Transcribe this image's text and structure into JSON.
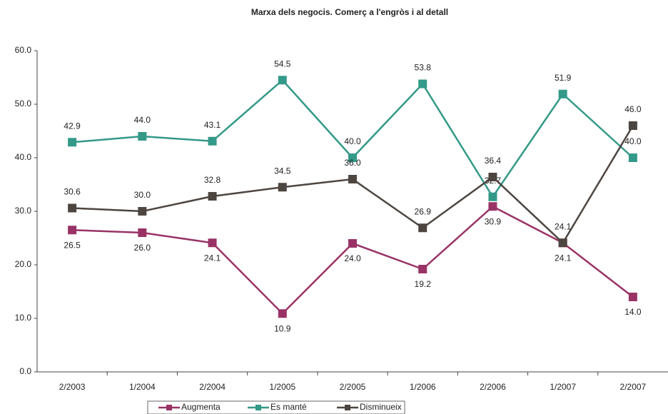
{
  "chart_data": {
    "type": "line",
    "title": "Marxa dels negocis. Comerç a l'engròs i al detall",
    "categories": [
      "2/2003",
      "1/2004",
      "2/2004",
      "1/2005",
      "2/2005",
      "1/2006",
      "2/2006",
      "1/2007",
      "2/2007"
    ],
    "series": [
      {
        "name": "Augmenta",
        "color": "#993366",
        "values": [
          26.5,
          26.0,
          24.1,
          10.9,
          24.0,
          19.2,
          30.9,
          24.1,
          14.0
        ],
        "value_labels": [
          "26.5",
          "26.0",
          "24.1",
          "10.9",
          "24.0",
          "19.2",
          "30.9",
          "24.1",
          "14.0"
        ]
      },
      {
        "name": "Es manté",
        "color": "#339988",
        "values": [
          42.9,
          44.0,
          43.1,
          54.5,
          40.0,
          53.8,
          32.7,
          51.9,
          40.0
        ],
        "value_labels": [
          "42.9",
          "44.0",
          "43.1",
          "54.5",
          "40.0",
          "53.8",
          "32.7",
          "51.9",
          "40.0"
        ]
      },
      {
        "name": "Disminueix",
        "color": "#4d4540",
        "values": [
          30.6,
          30.0,
          32.8,
          34.5,
          36.0,
          26.9,
          36.4,
          24.1,
          46.0
        ],
        "value_labels": [
          "30.6",
          "30.0",
          "32.8",
          "34.5",
          "36.0",
          "26.9",
          "36.4",
          "24.1",
          "46.0"
        ]
      }
    ],
    "ylim": [
      0,
      60
    ],
    "yticks": [
      {
        "value": 0,
        "label": "0.0"
      },
      {
        "value": 10,
        "label": "10.0"
      },
      {
        "value": 20,
        "label": "20.0"
      },
      {
        "value": 30,
        "label": "30.0"
      },
      {
        "value": 40,
        "label": "40.0"
      },
      {
        "value": 50,
        "label": "50.0"
      },
      {
        "value": 60,
        "label": "60.0"
      }
    ],
    "grid": false,
    "legend": "bottom"
  }
}
